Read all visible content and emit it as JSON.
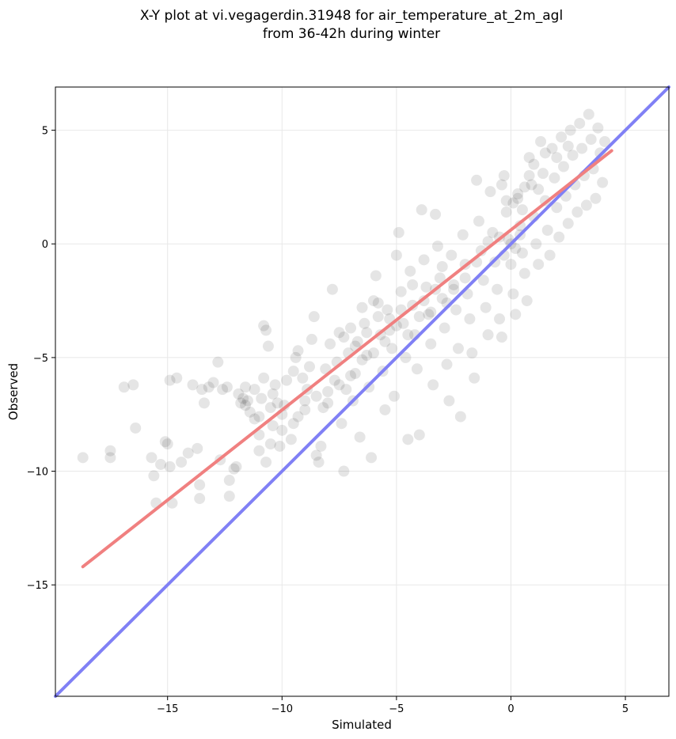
{
  "chart_data": {
    "type": "scatter",
    "title_lines": [
      "X-Y plot at vi.vegagerdin.31948 for air_temperature_at_2m_agl",
      "from 36-42h during winter"
    ],
    "xlabel": "Simulated",
    "ylabel": "Observed",
    "xlim": [
      -19.9,
      6.9
    ],
    "ylim": [
      -19.9,
      6.9
    ],
    "x_ticks": [
      -15,
      -10,
      -5,
      0,
      5
    ],
    "x_tick_labels": [
      "−15",
      "−10",
      "−5",
      "0",
      "5"
    ],
    "y_ticks": [
      -15,
      -10,
      -5,
      0,
      5
    ],
    "y_tick_labels": [
      "−15",
      "−10",
      "−5",
      "0",
      "5"
    ],
    "grid": true,
    "point_color": "#000000",
    "point_alpha": 0.1,
    "regression_line": {
      "color": "#f08080",
      "x": [
        -18.7,
        4.4
      ],
      "y": [
        -14.2,
        4.1
      ]
    },
    "identity_line": {
      "color": "#8080f5",
      "x": [
        -19.9,
        6.9
      ],
      "y": [
        -19.9,
        6.9
      ]
    },
    "points": [
      [
        -18.7,
        -9.4
      ],
      [
        -17.5,
        -9.4
      ],
      [
        -17.5,
        -9.1
      ],
      [
        -16.9,
        -6.3
      ],
      [
        -16.5,
        -6.2
      ],
      [
        -16.4,
        -8.1
      ],
      [
        -15.7,
        -9.4
      ],
      [
        -15.6,
        -10.2
      ],
      [
        -15.5,
        -11.4
      ],
      [
        -15.3,
        -9.7
      ],
      [
        -15.1,
        -8.7
      ],
      [
        -15.0,
        -8.8
      ],
      [
        -14.9,
        -9.8
      ],
      [
        -14.8,
        -11.4
      ],
      [
        -14.9,
        -6.0
      ],
      [
        -14.6,
        -5.9
      ],
      [
        -14.4,
        -9.6
      ],
      [
        -14.1,
        -9.2
      ],
      [
        -13.9,
        -6.2
      ],
      [
        -13.7,
        -9.0
      ],
      [
        -13.6,
        -10.6
      ],
      [
        -13.6,
        -11.2
      ],
      [
        -13.5,
        -6.4
      ],
      [
        -13.4,
        -7.0
      ],
      [
        -13.2,
        -6.3
      ],
      [
        -13.0,
        -6.1
      ],
      [
        -12.8,
        -5.2
      ],
      [
        -12.7,
        -9.5
      ],
      [
        -12.6,
        -6.4
      ],
      [
        -12.4,
        -6.3
      ],
      [
        -12.3,
        -11.1
      ],
      [
        -12.3,
        -10.4
      ],
      [
        -12.1,
        -9.9
      ],
      [
        -12.0,
        -9.8
      ],
      [
        -11.9,
        -6.6
      ],
      [
        -11.8,
        -7.0
      ],
      [
        -11.7,
        -6.8
      ],
      [
        -11.6,
        -7.1
      ],
      [
        -11.6,
        -6.3
      ],
      [
        -11.5,
        -6.9
      ],
      [
        -11.4,
        -7.4
      ],
      [
        -11.2,
        -7.7
      ],
      [
        -11.2,
        -6.4
      ],
      [
        -11.0,
        -7.6
      ],
      [
        -11.0,
        -8.4
      ],
      [
        -10.9,
        -6.8
      ],
      [
        -10.8,
        -5.9
      ],
      [
        -10.8,
        -3.6
      ],
      [
        -10.7,
        -3.8
      ],
      [
        -10.6,
        -4.5
      ],
      [
        -10.7,
        -9.6
      ],
      [
        -10.5,
        -7.2
      ],
      [
        -10.4,
        -8.0
      ],
      [
        -10.4,
        -6.6
      ],
      [
        -10.3,
        -6.2
      ],
      [
        -10.2,
        -7.0
      ],
      [
        -10.1,
        -8.9
      ],
      [
        -10.0,
        -7.5
      ],
      [
        -9.9,
        -7.1
      ],
      [
        -9.8,
        -6.0
      ],
      [
        -9.6,
        -8.6
      ],
      [
        -9.5,
        -5.6
      ],
      [
        -9.4,
        -5.0
      ],
      [
        -9.3,
        -7.6
      ],
      [
        -9.3,
        -4.7
      ],
      [
        -9.1,
        -5.9
      ],
      [
        -9.0,
        -6.9
      ],
      [
        -8.9,
        -6.4
      ],
      [
        -8.8,
        -5.4
      ],
      [
        -8.7,
        -4.2
      ],
      [
        -8.6,
        -3.2
      ],
      [
        -8.5,
        -9.3
      ],
      [
        -8.4,
        -9.6
      ],
      [
        -8.3,
        -8.9
      ],
      [
        -8.2,
        -7.2
      ],
      [
        -8.1,
        -5.5
      ],
      [
        -8.0,
        -6.5
      ],
      [
        -7.9,
        -4.4
      ],
      [
        -7.8,
        -2.0
      ],
      [
        -7.7,
        -6.0
      ],
      [
        -7.6,
        -5.2
      ],
      [
        -7.5,
        -3.9
      ],
      [
        -7.4,
        -7.9
      ],
      [
        -7.3,
        -10.0
      ],
      [
        -7.2,
        -6.4
      ],
      [
        -7.1,
        -4.8
      ],
      [
        -7.0,
        -3.7
      ],
      [
        -6.9,
        -6.9
      ],
      [
        -6.8,
        -5.7
      ],
      [
        -6.7,
        -4.3
      ],
      [
        -6.6,
        -8.5
      ],
      [
        -6.5,
        -2.8
      ],
      [
        -6.4,
        -3.5
      ],
      [
        -6.3,
        -4.9
      ],
      [
        -6.2,
        -6.3
      ],
      [
        -6.1,
        -9.4
      ],
      [
        -6.0,
        -2.5
      ],
      [
        -5.9,
        -1.4
      ],
      [
        -5.8,
        -3.2
      ],
      [
        -5.7,
        -4.0
      ],
      [
        -5.6,
        -5.6
      ],
      [
        -5.5,
        -7.3
      ],
      [
        -5.4,
        -2.9
      ],
      [
        -5.3,
        -3.8
      ],
      [
        -5.2,
        -4.6
      ],
      [
        -5.1,
        -6.7
      ],
      [
        -5.0,
        -0.5
      ],
      [
        -4.9,
        0.5
      ],
      [
        -4.8,
        -2.1
      ],
      [
        -4.7,
        -3.5
      ],
      [
        -4.6,
        -5.0
      ],
      [
        -4.5,
        -8.6
      ],
      [
        -4.4,
        -1.2
      ],
      [
        -4.3,
        -2.7
      ],
      [
        -4.2,
        -4.0
      ],
      [
        -4.1,
        -5.5
      ],
      [
        -4.0,
        -8.4
      ],
      [
        -3.9,
        1.5
      ],
      [
        -3.8,
        -0.7
      ],
      [
        -3.7,
        -1.9
      ],
      [
        -3.6,
        -3.1
      ],
      [
        -3.5,
        -4.4
      ],
      [
        -3.4,
        -6.2
      ],
      [
        -3.3,
        1.3
      ],
      [
        -3.2,
        -0.1
      ],
      [
        -3.1,
        -1.5
      ],
      [
        -3.0,
        -2.4
      ],
      [
        -2.9,
        -3.7
      ],
      [
        -2.8,
        -5.3
      ],
      [
        -2.7,
        -6.9
      ],
      [
        -2.6,
        -0.5
      ],
      [
        -2.5,
        -1.8
      ],
      [
        -2.4,
        -2.9
      ],
      [
        -2.3,
        -4.6
      ],
      [
        -2.2,
        -7.6
      ],
      [
        -2.1,
        0.4
      ],
      [
        -2.0,
        -0.9
      ],
      [
        -1.9,
        -2.2
      ],
      [
        -1.8,
        -3.3
      ],
      [
        -1.7,
        -4.8
      ],
      [
        -1.6,
        -5.9
      ],
      [
        -1.5,
        2.8
      ],
      [
        -1.4,
        1.0
      ],
      [
        -1.3,
        -0.3
      ],
      [
        -1.2,
        -1.6
      ],
      [
        -1.1,
        -2.8
      ],
      [
        -1.0,
        -4.0
      ],
      [
        -0.9,
        2.3
      ],
      [
        -0.8,
        0.5
      ],
      [
        -0.7,
        -0.8
      ],
      [
        -0.6,
        -2.0
      ],
      [
        -0.5,
        -3.3
      ],
      [
        -0.4,
        -4.1
      ],
      [
        -0.3,
        3.0
      ],
      [
        -0.2,
        1.4
      ],
      [
        -0.1,
        0.2
      ],
      [
        0.0,
        -0.9
      ],
      [
        0.1,
        -2.2
      ],
      [
        0.2,
        -3.1
      ],
      [
        0.3,
        2.0
      ],
      [
        0.4,
        0.8
      ],
      [
        0.5,
        -0.4
      ],
      [
        0.6,
        -1.3
      ],
      [
        0.7,
        -2.5
      ],
      [
        0.8,
        3.8
      ],
      [
        0.9,
        2.6
      ],
      [
        1.0,
        1.2
      ],
      [
        1.1,
        0.0
      ],
      [
        1.2,
        -0.9
      ],
      [
        1.3,
        4.5
      ],
      [
        1.4,
        3.1
      ],
      [
        1.5,
        1.9
      ],
      [
        1.6,
        0.6
      ],
      [
        1.7,
        -0.5
      ],
      [
        1.8,
        4.2
      ],
      [
        1.9,
        2.9
      ],
      [
        2.0,
        1.6
      ],
      [
        2.1,
        0.3
      ],
      [
        2.2,
        4.7
      ],
      [
        2.3,
        3.4
      ],
      [
        2.4,
        2.1
      ],
      [
        2.5,
        0.9
      ],
      [
        2.6,
        5.0
      ],
      [
        2.7,
        3.9
      ],
      [
        2.8,
        2.6
      ],
      [
        2.9,
        1.4
      ],
      [
        3.0,
        5.3
      ],
      [
        3.1,
        4.2
      ],
      [
        3.2,
        3.0
      ],
      [
        3.3,
        1.7
      ],
      [
        3.4,
        5.7
      ],
      [
        3.5,
        4.6
      ],
      [
        3.6,
        3.3
      ],
      [
        3.7,
        2.0
      ],
      [
        3.8,
        5.1
      ],
      [
        3.9,
        4.0
      ],
      [
        4.0,
        2.7
      ],
      [
        4.1,
        4.5
      ],
      [
        -1.0,
        0.1
      ],
      [
        -0.5,
        0.3
      ],
      [
        0.0,
        0.0
      ],
      [
        0.2,
        -0.2
      ],
      [
        -0.3,
        -0.5
      ],
      [
        0.4,
        0.4
      ],
      [
        0.1,
        1.8
      ],
      [
        0.3,
        2.2
      ],
      [
        -0.2,
        1.9
      ],
      [
        0.5,
        1.5
      ],
      [
        0.6,
        2.5
      ],
      [
        -0.4,
        2.6
      ],
      [
        1.0,
        3.5
      ],
      [
        1.5,
        4.0
      ],
      [
        2.0,
        3.8
      ],
      [
        2.5,
        4.3
      ],
      [
        0.8,
        3.0
      ],
      [
        1.2,
        2.4
      ],
      [
        -2.0,
        -1.5
      ],
      [
        -2.5,
        -2.0
      ],
      [
        -3.0,
        -1.0
      ],
      [
        -1.5,
        -0.8
      ],
      [
        -2.8,
        -2.6
      ],
      [
        -3.5,
        -3.0
      ],
      [
        -4.0,
        -3.2
      ],
      [
        -4.5,
        -4.0
      ],
      [
        -5.0,
        -3.6
      ],
      [
        -5.5,
        -4.3
      ],
      [
        -6.0,
        -4.8
      ],
      [
        -6.5,
        -5.1
      ],
      [
        -7.0,
        -5.8
      ],
      [
        -7.5,
        -6.2
      ],
      [
        -8.0,
        -7.0
      ],
      [
        -8.5,
        -6.7
      ],
      [
        -9.0,
        -7.3
      ],
      [
        -9.5,
        -7.9
      ],
      [
        -10.0,
        -8.2
      ],
      [
        -10.5,
        -8.8
      ],
      [
        -11.0,
        -9.1
      ],
      [
        -3.3,
        -2.0
      ],
      [
        -3.8,
        -2.5
      ],
      [
        -4.3,
        -1.8
      ],
      [
        -4.8,
        -2.9
      ],
      [
        -5.3,
        -3.3
      ],
      [
        -5.8,
        -2.6
      ],
      [
        -6.3,
        -3.9
      ],
      [
        -6.8,
        -4.5
      ],
      [
        -7.3,
        -4.1
      ]
    ]
  }
}
